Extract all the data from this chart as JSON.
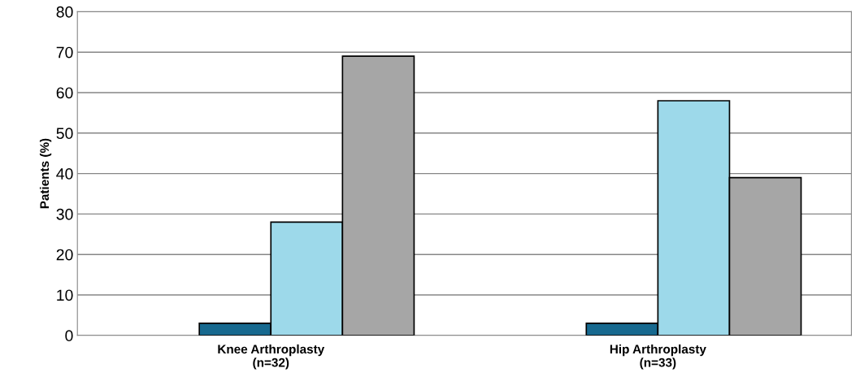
{
  "chart_data": {
    "type": "bar",
    "ylabel": "Patients (%)",
    "categories": [
      "Knee Arthroplasty\n(n=32)",
      "Hip Arthroplasty\n(n=33)"
    ],
    "series": [
      {
        "values": [
          null,
          null
        ]
      },
      {
        "color": "#17698f",
        "values": [
          3,
          3
        ]
      },
      {
        "color": "#9dd9ea",
        "values": [
          28,
          58
        ]
      },
      {
        "color": "#a6a6a6",
        "values": [
          69,
          39
        ]
      }
    ],
    "ylim": [
      0,
      80
    ],
    "yticks": [
      0,
      10,
      20,
      30,
      40,
      50,
      60,
      70,
      80
    ],
    "grid": "y",
    "legend": false
  }
}
